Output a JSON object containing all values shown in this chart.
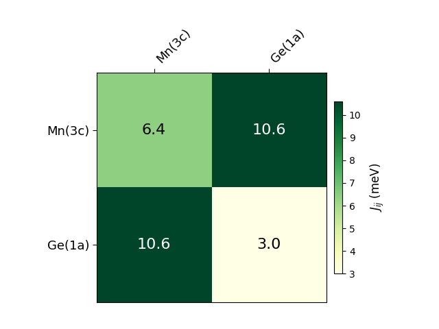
{
  "matrix": [
    [
      6.4,
      10.6
    ],
    [
      10.6,
      3.0
    ]
  ],
  "row_labels": [
    "Mn(3c)",
    "Ge(1a)"
  ],
  "col_labels": [
    "Mn(3c)",
    "Ge(1a)"
  ],
  "vmin": 3,
  "vmax": 10.6,
  "colorbar_label": "$J_{ij}$ (meV)",
  "colorbar_ticks": [
    3,
    4,
    5,
    6,
    7,
    8,
    9,
    10
  ],
  "cmap": "YlGn",
  "annotation_colors": [
    "black",
    "white",
    "white",
    "black"
  ],
  "annotation_fontsize": 16,
  "tick_fontsize": 13,
  "colorbar_fontsize": 12,
  "figsize": [
    6.4,
    4.8
  ],
  "dpi": 100
}
